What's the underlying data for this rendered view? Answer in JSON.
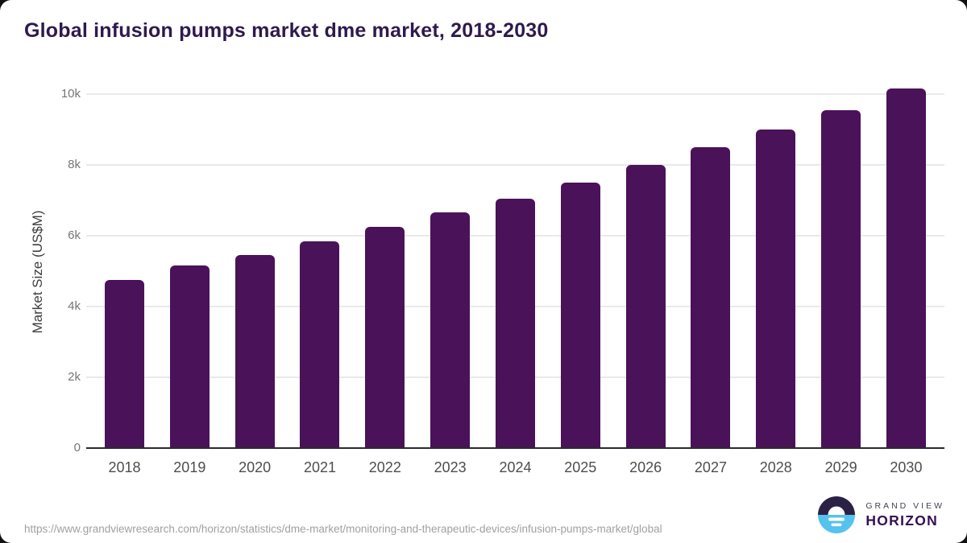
{
  "page": {
    "source_url": "https://www.grandviewresearch.com/horizon/statistics/dme-market/monitoring-and-therapeutic-devices/infusion-pumps-market/global"
  },
  "branding": {
    "logo_icon": "sunrise-horizon-icon",
    "line1": "GRAND VIEW",
    "line2": "HORIZON"
  },
  "chart_data": {
    "type": "bar",
    "title": "Global infusion pumps market dme market, 2018-2030",
    "categories": [
      "2018",
      "2019",
      "2020",
      "2021",
      "2022",
      "2023",
      "2024",
      "2025",
      "2026",
      "2027",
      "2028",
      "2029",
      "2030"
    ],
    "values": [
      4750,
      5150,
      5450,
      5850,
      6250,
      6650,
      7050,
      7500,
      8000,
      8500,
      9000,
      9550,
      10150
    ],
    "xlabel": "",
    "ylabel": "Market Size (US$M)",
    "ylim": [
      0,
      10500
    ],
    "yticks": [
      {
        "value": 0,
        "label": "0"
      },
      {
        "value": 2000,
        "label": "2k"
      },
      {
        "value": 4000,
        "label": "4k"
      },
      {
        "value": 6000,
        "label": "6k"
      },
      {
        "value": 8000,
        "label": "8k"
      },
      {
        "value": 10000,
        "label": "10k"
      }
    ],
    "grid": "horizontal",
    "legend": "none",
    "colors": {
      "bar": "#4a1259",
      "title": "#2e1a4e",
      "gridline": "#e9e9e9",
      "axis_line": "#2b2b2b",
      "ytick_label": "#757575",
      "xtick_label": "#4d4d4d",
      "source_text": "#a0a0a0",
      "logo_dark": "#2b2144",
      "logo_blue": "#56c2ee"
    }
  }
}
